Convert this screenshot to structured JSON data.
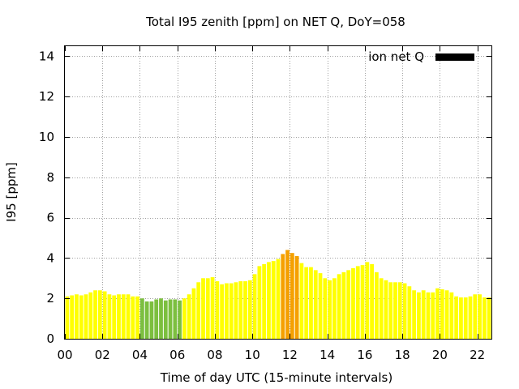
{
  "chart_data": {
    "type": "bar",
    "title": "Total I95 zenith [ppm] on NET Q, DoY=058",
    "xlabel": "Time of day UTC (15-minute intervals)",
    "ylabel": "I95 [ppm]",
    "xlim": [
      0,
      22.75
    ],
    "ylim": [
      0,
      14.5
    ],
    "x_ticks": [
      "00",
      "02",
      "04",
      "06",
      "08",
      "10",
      "12",
      "14",
      "16",
      "18",
      "20",
      "22"
    ],
    "y_ticks": [
      "0",
      "2",
      "4",
      "6",
      "8",
      "10",
      "12",
      "14"
    ],
    "grid": true,
    "legend": {
      "position": "top-right",
      "entries": [
        {
          "label": "ion net Q",
          "color": "#000000"
        }
      ]
    },
    "bar_interval_hours": 0.25,
    "series": [
      {
        "x": [
          0,
          0.25,
          0.5,
          0.75,
          1,
          1.25,
          1.5,
          1.75,
          2,
          2.25,
          2.5,
          2.75,
          3,
          3.25,
          3.5,
          3.75,
          4,
          4.25,
          4.5,
          4.75,
          5,
          5.25,
          5.5,
          5.75,
          6,
          6.25,
          6.5,
          6.75,
          7,
          7.25,
          7.5,
          7.75,
          8,
          8.25,
          8.5,
          8.75,
          9,
          9.25,
          9.5,
          9.75,
          10,
          10.25,
          10.5,
          10.75,
          11,
          11.25,
          11.5,
          11.75,
          12,
          12.25,
          12.5,
          12.75,
          13,
          13.25,
          13.5,
          13.75,
          14,
          14.25,
          14.5,
          14.75,
          15,
          15.25,
          15.5,
          15.75,
          16,
          16.25,
          16.5,
          16.75,
          17,
          17.25,
          17.5,
          17.75,
          18,
          18.25,
          18.5,
          18.75,
          19,
          19.25,
          19.5,
          19.75,
          20,
          20.25,
          20.5,
          20.75,
          21,
          21.25,
          21.5,
          21.75,
          22,
          22.25,
          22.5
        ],
        "values": [
          2.1,
          2.15,
          2.2,
          2.15,
          2.2,
          2.3,
          2.4,
          2.4,
          2.35,
          2.2,
          2.15,
          2.2,
          2.2,
          2.2,
          2.1,
          2.1,
          2.0,
          1.85,
          1.85,
          1.95,
          2.0,
          1.9,
          1.95,
          1.95,
          1.9,
          2.0,
          2.2,
          2.5,
          2.8,
          3.0,
          3.0,
          3.05,
          2.85,
          2.7,
          2.75,
          2.75,
          2.8,
          2.85,
          2.85,
          2.9,
          3.2,
          3.6,
          3.7,
          3.8,
          3.85,
          3.95,
          4.2,
          4.4,
          4.25,
          4.1,
          3.75,
          3.55,
          3.55,
          3.4,
          3.25,
          3.0,
          2.9,
          3.0,
          3.2,
          3.3,
          3.4,
          3.5,
          3.6,
          3.65,
          3.8,
          3.7,
          3.3,
          3.0,
          2.9,
          2.8,
          2.8,
          2.8,
          2.75,
          2.6,
          2.4,
          2.3,
          2.4,
          2.3,
          2.3,
          2.5,
          2.45,
          2.4,
          2.3,
          2.1,
          2.05,
          2.05,
          2.1,
          2.2,
          2.2,
          2.05,
          2.05
        ],
        "colors": [
          "#ffff00",
          "#ffff00",
          "#ffff00",
          "#ffff00",
          "#ffff00",
          "#ffff00",
          "#ffff00",
          "#ffff00",
          "#ffff00",
          "#ffff00",
          "#ffff00",
          "#ffff00",
          "#ffff00",
          "#ffff00",
          "#ffff00",
          "#ffff00",
          "#7cbf3f",
          "#7cbf3f",
          "#7cbf3f",
          "#7cbf3f",
          "#7cbf3f",
          "#7cbf3f",
          "#7cbf3f",
          "#7cbf3f",
          "#7cbf3f",
          "#ffff00",
          "#ffff00",
          "#ffff00",
          "#ffff00",
          "#ffff00",
          "#ffff00",
          "#ffff00",
          "#ffff00",
          "#ffff00",
          "#ffff00",
          "#ffff00",
          "#ffff00",
          "#ffff00",
          "#ffff00",
          "#ffff00",
          "#ffff00",
          "#ffff00",
          "#ffff00",
          "#ffff00",
          "#ffff00",
          "#ffff00",
          "#f5a000",
          "#f5a000",
          "#f5a000",
          "#f5a000",
          "#ffff00",
          "#ffff00",
          "#ffff00",
          "#ffff00",
          "#ffff00",
          "#ffff00",
          "#ffff00",
          "#ffff00",
          "#ffff00",
          "#ffff00",
          "#ffff00",
          "#ffff00",
          "#ffff00",
          "#ffff00",
          "#ffff00",
          "#ffff00",
          "#ffff00",
          "#ffff00",
          "#ffff00",
          "#ffff00",
          "#ffff00",
          "#ffff00",
          "#ffff00",
          "#ffff00",
          "#ffff00",
          "#ffff00",
          "#ffff00",
          "#ffff00",
          "#ffff00",
          "#ffff00",
          "#ffff00",
          "#ffff00",
          "#ffff00",
          "#ffff00",
          "#ffff00",
          "#ffff00",
          "#ffff00",
          "#ffff00",
          "#ffff00",
          "#ffff00",
          "#ffff00"
        ]
      }
    ]
  }
}
